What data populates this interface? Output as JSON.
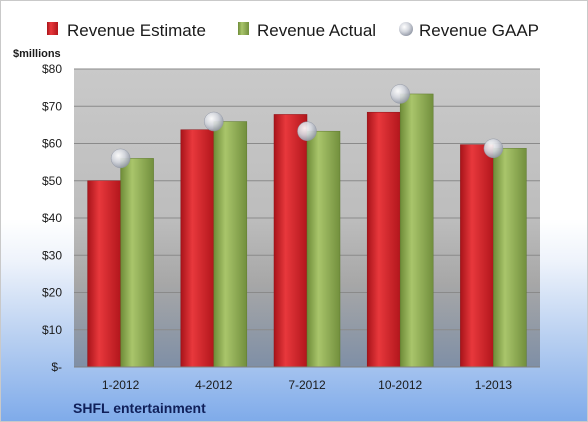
{
  "chart_data": {
    "type": "bar",
    "ylabel": "$millions",
    "ylim": [
      0,
      80
    ],
    "yticks": [
      0,
      10,
      20,
      30,
      40,
      50,
      60,
      70,
      80
    ],
    "ytick_labels": [
      "$-",
      "$10",
      "$20",
      "$30",
      "$40",
      "$50",
      "$60",
      "$70",
      "$80"
    ],
    "categories": [
      "1-2012",
      "4-2012",
      "7-2012",
      "10-2012",
      "1-2013"
    ],
    "series": [
      {
        "name": "Revenue Estimate",
        "kind": "bar",
        "color": "#d42128",
        "values": [
          50,
          63.7,
          67.8,
          68.4,
          59.7
        ]
      },
      {
        "name": "Revenue Actual",
        "kind": "bar",
        "color": "#8cac4f",
        "values": [
          56,
          65.9,
          63.3,
          73.3,
          58.7
        ]
      },
      {
        "name": "Revenue GAAP",
        "kind": "marker",
        "color": "#c8ccd6",
        "values": [
          56,
          65.9,
          63.3,
          73.3,
          58.7
        ]
      }
    ],
    "legend_position": "top",
    "grid": true,
    "footer": "SHFL entertainment"
  }
}
